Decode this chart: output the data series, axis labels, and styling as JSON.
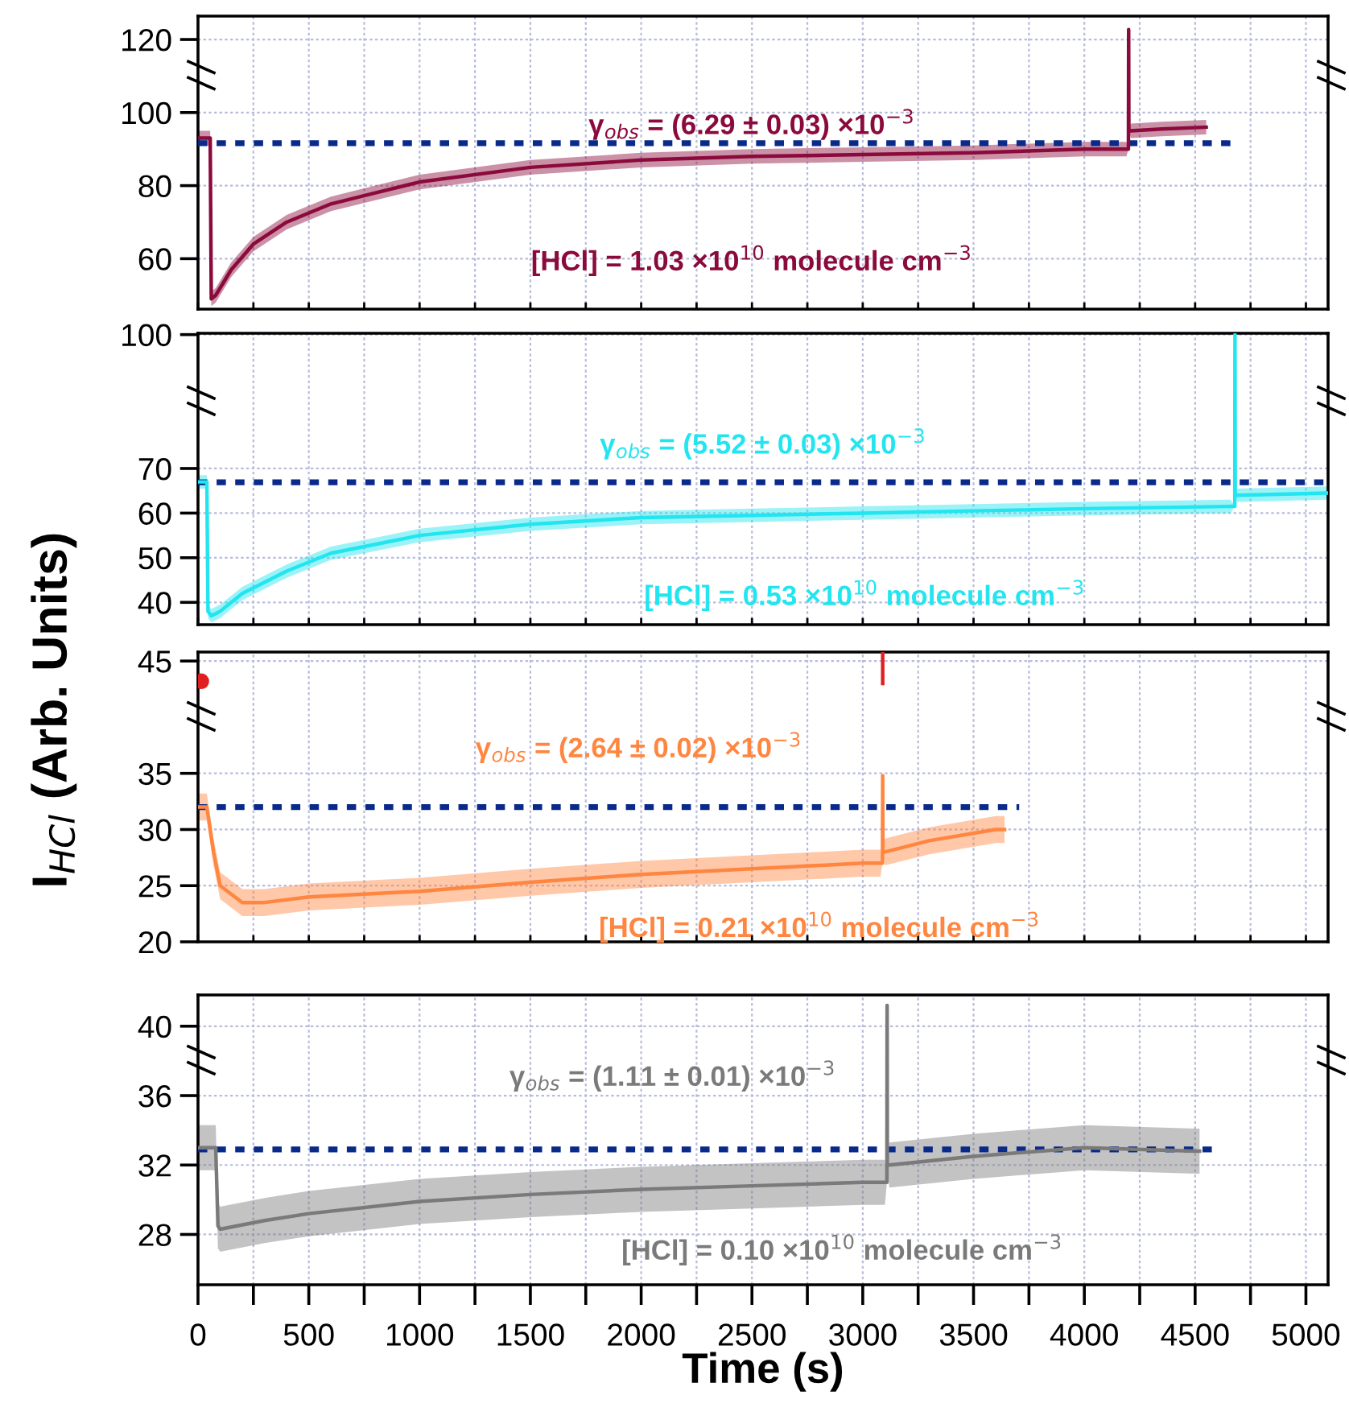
{
  "chart_data": [
    {
      "type": "line",
      "xlim": [
        0,
        5100
      ],
      "ylim": [
        46.2,
        126.4
      ],
      "yticks": [
        60,
        80,
        100,
        120
      ],
      "grid": true,
      "tick_labels": "y",
      "xticks": [
        0,
        {
          "value": 250,
          "label": null
        },
        500,
        {
          "value": 750,
          "label": null
        },
        1000,
        {
          "value": 1250,
          "label": null
        },
        1500,
        {
          "value": 1750,
          "label": null
        },
        2000,
        {
          "value": 2250,
          "label": null
        },
        2500,
        {
          "value": 2750,
          "label": null
        },
        3000,
        {
          "value": 3250,
          "label": null
        },
        3500,
        {
          "value": 3750,
          "label": null
        },
        4000,
        {
          "value": 4250,
          "label": null
        },
        4500,
        {
          "value": 4750,
          "label": null
        },
        5000
      ],
      "annotations": [
        "γ$_{obs}$ = (6.29 ± 0.03) ×10$^{−3}$",
        "[HCl] = 1.03 ×10$^{10}$ molecule cm$^{−3}$"
      ],
      "series": [
        {
          "color": "#8b0a3c",
          "x": [
            0,
            40,
            55,
            60,
            80,
            150,
            250,
            400,
            600,
            800,
            1000,
            1500,
            2000,
            2500,
            3000,
            3500,
            4000,
            4190,
            4199,
            4200,
            4201,
            4210,
            4350,
            4550
          ],
          "values": [
            93,
            93,
            93,
            49,
            50,
            57,
            64,
            70,
            75,
            78,
            81,
            85,
            87,
            88,
            88.5,
            89,
            90,
            90,
            90,
            122.7,
            95,
            95,
            95.5,
            96
          ],
          "lower": [
            91,
            91,
            91,
            47,
            48,
            55,
            62,
            68,
            73,
            76,
            79,
            83,
            85,
            86,
            86.5,
            87,
            88,
            88,
            90,
            122.7,
            95,
            93,
            93.5,
            94
          ],
          "upper": [
            95,
            95,
            95,
            51,
            52,
            59,
            66,
            72,
            77,
            80,
            83,
            87,
            89,
            90,
            90.5,
            91,
            92,
            92,
            90,
            122.7,
            95,
            97,
            97.5,
            98
          ]
        },
        {
          "color": "#0a2a8a",
          "line_style": "dotted",
          "x": [
            0,
            4666
          ],
          "values": [
            91.6,
            91.6
          ]
        }
      ]
    },
    {
      "type": "line",
      "xlim": [
        0,
        5100
      ],
      "ylim": [
        35,
        100.3
      ],
      "yticks": [
        40,
        50,
        60,
        70,
        100
      ],
      "grid": true,
      "tick_labels": "y",
      "xticks": [
        0,
        {
          "value": 250,
          "label": null
        },
        500,
        {
          "value": 750,
          "label": null
        },
        1000,
        {
          "value": 1250,
          "label": null
        },
        1500,
        {
          "value": 1750,
          "label": null
        },
        2000,
        {
          "value": 2250,
          "label": null
        },
        2500,
        {
          "value": 2750,
          "label": null
        },
        3000,
        {
          "value": 3250,
          "label": null
        },
        3500,
        {
          "value": 3750,
          "label": null
        },
        4000,
        {
          "value": 4250,
          "label": null
        },
        4500,
        {
          "value": 4750,
          "label": null
        },
        5000
      ],
      "ylabel": "I$_{HCl}$ (Arb. Units)",
      "annotations": [
        "γ$_{obs}$ = (5.52 ± 0.03) ×10$^{−3}$",
        "[HCl] = 0.53 ×10$^{10}$ molecule cm$^{−3}$"
      ],
      "series": [
        {
          "color": "#22e5ef",
          "x": [
            0,
            40,
            45,
            60,
            100,
            200,
            400,
            600,
            800,
            1000,
            1500,
            2000,
            2500,
            3000,
            3500,
            4000,
            4660,
            4679,
            4680,
            4681,
            4690,
            5100
          ],
          "values": [
            67,
            67,
            38,
            37,
            38,
            42,
            47,
            51,
            53,
            55,
            57.5,
            59,
            59.5,
            60,
            60.5,
            61,
            61.5,
            61.5,
            100,
            64,
            64,
            64.5
          ],
          "lower": [
            65.5,
            65.5,
            36.5,
            35.5,
            36.5,
            40.5,
            45.5,
            49.5,
            51.5,
            53.5,
            56,
            57.5,
            58,
            58.5,
            59,
            59.5,
            60,
            61.5,
            100,
            64,
            62.5,
            63
          ],
          "upper": [
            68.5,
            68.5,
            39.5,
            38.5,
            39.5,
            43.5,
            48.5,
            52.5,
            54.5,
            56.5,
            59,
            60.5,
            61,
            61.5,
            62,
            62.5,
            63,
            61.5,
            100,
            64,
            65.5,
            66
          ]
        },
        {
          "color": "#0a2a8a",
          "line_style": "dotted",
          "x": [
            0,
            5100
          ],
          "values": [
            66.9,
            66.9
          ]
        }
      ]
    },
    {
      "type": "line",
      "xlim": [
        0,
        5100
      ],
      "ylim": [
        20,
        45.8
      ],
      "yticks": [
        20,
        25,
        30,
        35,
        45
      ],
      "grid": true,
      "tick_labels": "y",
      "xticks": [
        0,
        {
          "value": 250,
          "label": null
        },
        500,
        {
          "value": 750,
          "label": null
        },
        1000,
        {
          "value": 1250,
          "label": null
        },
        1500,
        {
          "value": 1750,
          "label": null
        },
        2000,
        {
          "value": 2250,
          "label": null
        },
        2500,
        {
          "value": 2750,
          "label": null
        },
        3000,
        {
          "value": 3250,
          "label": null
        },
        3500,
        {
          "value": 3750,
          "label": null
        },
        4000,
        {
          "value": 4250,
          "label": null
        },
        4500,
        {
          "value": 4750,
          "label": null
        },
        5000
      ],
      "annotations": [
        "γ$_{obs}$ = (2.64 ± 0.02) ×10$^{−3}$",
        "[HCl] = 0.21 ×10$^{10}$ molecule cm$^{−3}$"
      ],
      "series": [
        {
          "color": "#ff8640",
          "x": [
            0,
            40,
            70,
            100,
            200,
            300,
            500,
            1000,
            1500,
            2000,
            2500,
            3000,
            3080,
            3089,
            3090,
            3091,
            3100,
            3300,
            3600,
            3640
          ],
          "values": [
            32,
            32,
            28,
            25,
            23.5,
            23.5,
            24,
            24.5,
            25.3,
            26,
            26.5,
            27,
            27,
            27,
            34.8,
            28,
            28,
            29,
            30,
            30
          ],
          "lower": [
            30.8,
            30.8,
            26.8,
            23.8,
            22.3,
            22.3,
            22.8,
            23.3,
            24.1,
            24.8,
            25.3,
            25.8,
            25.8,
            27,
            34.8,
            28,
            26.8,
            27.8,
            28.8,
            28.8
          ],
          "upper": [
            33.2,
            33.2,
            29.2,
            26.2,
            24.7,
            24.7,
            25.2,
            25.7,
            26.5,
            27.2,
            27.7,
            28.2,
            28.2,
            27,
            34.8,
            28,
            29.2,
            30.2,
            31.2,
            31.2
          ]
        },
        {
          "color": "#e02020",
          "x": [
            3090,
            3090
          ],
          "values": [
            43,
            45.8
          ]
        },
        {
          "type": "scatter",
          "marker": "circle",
          "color": "#e02020",
          "x": [
            15
          ],
          "values": [
            43.2
          ]
        },
        {
          "color": "#0a2a8a",
          "line_style": "dotted",
          "x": [
            0,
            3706
          ],
          "values": [
            32,
            32
          ]
        }
      ]
    },
    {
      "type": "line",
      "xlim": [
        0,
        5100
      ],
      "ylim": [
        25.1,
        41.8
      ],
      "yticks": [
        28,
        32,
        36,
        40
      ],
      "grid": true,
      "xticks": [
        0,
        {
          "value": 250,
          "label": null
        },
        500,
        {
          "value": 750,
          "label": null
        },
        1000,
        {
          "value": 1250,
          "label": null
        },
        1500,
        {
          "value": 1750,
          "label": null
        },
        2000,
        {
          "value": 2250,
          "label": null
        },
        2500,
        {
          "value": 2750,
          "label": null
        },
        3000,
        {
          "value": 3250,
          "label": null
        },
        3500,
        {
          "value": 3750,
          "label": null
        },
        4000,
        {
          "value": 4250,
          "label": null
        },
        4500,
        {
          "value": 4750,
          "label": null
        },
        5000
      ],
      "xlabel": "Time (s)",
      "annotations": [
        "γ$_{obs}$ = (1.11 ± 0.01) ×10$^{−3}$",
        "[HCl] = 0.10 ×10$^{10}$ molecule cm$^{−3}$"
      ],
      "series": [
        {
          "color": "#7a7a7a",
          "x": [
            0,
            80,
            90,
            100,
            300,
            500,
            1000,
            1500,
            2000,
            2500,
            3000,
            3100,
            3109,
            3110,
            3111,
            3120,
            3500,
            4000,
            4500,
            4520
          ],
          "values": [
            33,
            33,
            28.5,
            28.3,
            28.8,
            29.2,
            29.9,
            30.3,
            30.6,
            30.8,
            31,
            31,
            31,
            41.2,
            32,
            32,
            32.5,
            33,
            32.8,
            32.8
          ],
          "lower": [
            31.7,
            31.7,
            27.2,
            27,
            27.5,
            27.9,
            28.6,
            29,
            29.3,
            29.5,
            29.7,
            29.7,
            31,
            41.2,
            32,
            30.7,
            31.2,
            31.7,
            31.5,
            31.5
          ],
          "upper": [
            34.3,
            34.3,
            29.8,
            29.6,
            30.1,
            30.5,
            31.2,
            31.6,
            31.9,
            32.1,
            32.3,
            32.3,
            31,
            41.2,
            32,
            33.3,
            33.8,
            34.3,
            34.1,
            34.1
          ]
        },
        {
          "color": "#0a2a8a",
          "line_style": "dotted",
          "x": [
            0,
            4578
          ],
          "values": [
            32.9,
            32.9
          ]
        }
      ]
    }
  ]
}
